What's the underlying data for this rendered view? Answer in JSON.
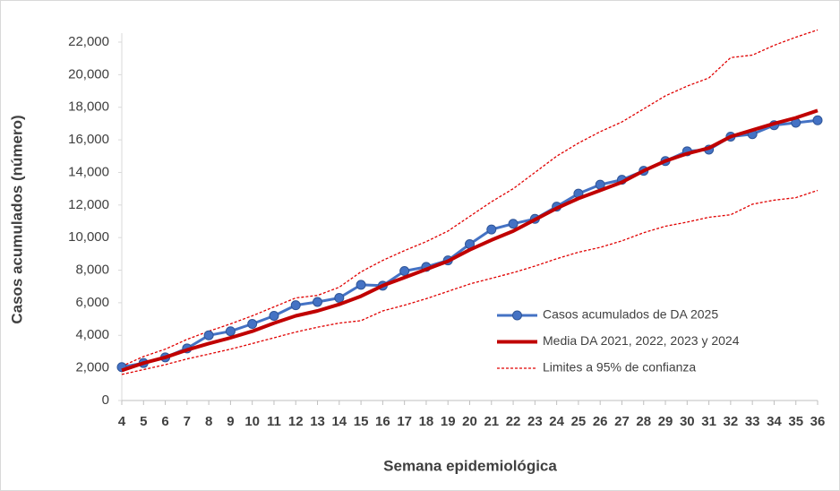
{
  "chart_data": {
    "type": "line",
    "x_label": "Semana epidemiológica",
    "y_label": "Casos acumulados  (número)",
    "x": [
      4,
      5,
      6,
      7,
      8,
      9,
      10,
      11,
      12,
      13,
      14,
      15,
      16,
      17,
      18,
      19,
      20,
      21,
      22,
      23,
      24,
      25,
      26,
      27,
      28,
      29,
      30,
      31,
      32,
      33,
      34,
      35,
      36
    ],
    "xlim": [
      4,
      36
    ],
    "ylim": [
      0,
      22000
    ],
    "yticks": [
      0,
      {
        "value": 2000,
        "label": "2,000"
      },
      {
        "value": 4000,
        "label": "4,000"
      },
      {
        "value": 6000,
        "label": "6,000"
      },
      {
        "value": 8000,
        "label": "8,000"
      },
      {
        "value": 10000,
        "label": "10,000"
      },
      {
        "value": 12000,
        "label": "12,000"
      },
      {
        "value": 14000,
        "label": "14,000"
      },
      {
        "value": 16000,
        "label": "16,000"
      },
      {
        "value": 18000,
        "label": "18,000"
      },
      {
        "value": 20000,
        "label": "20,000"
      },
      {
        "value": 22000,
        "label": "22,000"
      }
    ],
    "grid": false,
    "legend": "right",
    "series": [
      {
        "name": "Casos acumulados de DA 2025",
        "color": "#4472c4",
        "style": "line-markers",
        "values": [
          2050,
          2300,
          2650,
          3200,
          4000,
          4250,
          4700,
          5200,
          5850,
          6050,
          6300,
          7100,
          7050,
          7950,
          8200,
          8600,
          9600,
          10500,
          10850,
          11150,
          11900,
          12700,
          13250,
          13550,
          14100,
          14700,
          15300,
          15400,
          16200,
          16350,
          16900,
          17050,
          17200
        ]
      },
      {
        "name": "Media DA 2021, 2022, 2023 y 2024",
        "color": "#c00000",
        "style": "thick",
        "values": [
          1850,
          2300,
          2650,
          3100,
          3500,
          3850,
          4250,
          4750,
          5200,
          5500,
          5900,
          6400,
          7050,
          7550,
          8050,
          8550,
          9250,
          9850,
          10400,
          11100,
          11800,
          12400,
          12900,
          13400,
          14100,
          14700,
          15150,
          15500,
          16200,
          16600,
          17000,
          17350,
          17800
        ]
      },
      {
        "name": "Limites a 95% de confianza",
        "color": "#e00000",
        "style": "dashed",
        "values": [
          2100,
          2700,
          3150,
          3750,
          4250,
          4700,
          5200,
          5750,
          6300,
          6450,
          6950,
          7900,
          8600,
          9200,
          9750,
          10400,
          11300,
          12200,
          13000,
          14000,
          15000,
          15800,
          16500,
          17100,
          17900,
          18700,
          19300,
          19800,
          21050,
          21200,
          21800,
          22300,
          22750
        ],
        "values_low": [
          1600,
          1900,
          2200,
          2550,
          2850,
          3150,
          3500,
          3850,
          4200,
          4500,
          4750,
          4900,
          5500,
          5850,
          6250,
          6700,
          7150,
          7500,
          7850,
          8250,
          8700,
          9100,
          9400,
          9800,
          10300,
          10700,
          10950,
          11250,
          11400,
          12050,
          12300,
          12450,
          12900
        ]
      }
    ]
  }
}
